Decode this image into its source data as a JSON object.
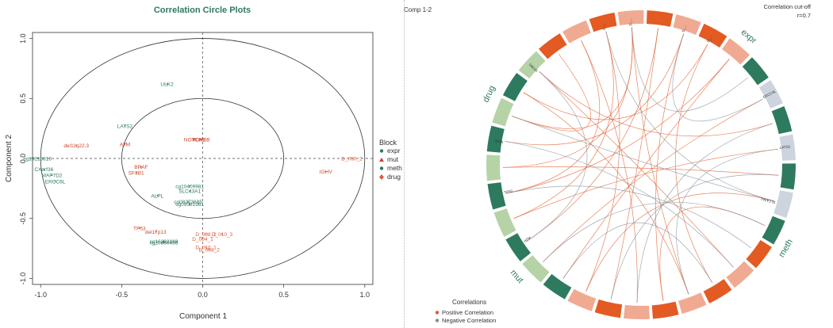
{
  "left_panel": {
    "title": "Correlation Circle Plots",
    "xlabel": "Component  1",
    "ylabel": "Component  2",
    "legend_title": "Block",
    "legend": [
      {
        "label": "expr",
        "color": "#2e7a5e"
      },
      {
        "label": "mut",
        "color": "#c8452a"
      },
      {
        "label": "meth",
        "color": "#2e7a5e"
      },
      {
        "label": "drug",
        "color": "#e05a38"
      }
    ]
  },
  "right_panel": {
    "comp_label": "Comp 1-2",
    "cutoff_line1": "Correlation cut-off",
    "cutoff_line2": "r=0.7",
    "corr_title": "Correlations",
    "corr_legend": [
      {
        "label": "Positive Correlation",
        "color": "#e05a28"
      },
      {
        "label": "Negative Correlation",
        "color": "#7f8f99"
      }
    ],
    "block_labels": [
      {
        "text": "drug",
        "angle": -65
      },
      {
        "text": "expr",
        "angle": 40
      },
      {
        "text": "meth",
        "angle": 120
      },
      {
        "text": "mut",
        "angle": 228
      }
    ]
  },
  "chart_data": [
    {
      "type": "scatter",
      "title": "Correlation Circle Plots",
      "xlabel": "Component  1",
      "ylabel": "Component  2",
      "xlim": [
        -1.05,
        1.05
      ],
      "ylim": [
        -1.05,
        1.05
      ],
      "xticks": [
        "-1.0",
        "-0.5",
        "0.0",
        "0.5",
        "1.0"
      ],
      "yticks": [
        "-1.0",
        "-0.5",
        "0.0",
        "0.5",
        "1.0"
      ],
      "circles": [
        0.5,
        1.0
      ],
      "points": [
        {
          "label": "ULK2",
          "x": -0.22,
          "y": 0.62,
          "block": "expr"
        },
        {
          "label": "LATS2",
          "x": -0.48,
          "y": 0.27,
          "block": "expr"
        },
        {
          "label": "NOTCH1",
          "x": -0.05,
          "y": 0.16,
          "block": "mut"
        },
        {
          "label": "KDM6B",
          "x": -0.01,
          "y": 0.16,
          "block": "mut"
        },
        {
          "label": "ATM",
          "x": -0.48,
          "y": 0.12,
          "block": "mut"
        },
        {
          "label": "del11q22.3",
          "x": -0.78,
          "y": 0.11,
          "block": "mut"
        },
        {
          "label": "cg19219816",
          "x": -1.02,
          "y": 0.0,
          "block": "meth"
        },
        {
          "label": "D_050_2",
          "x": 0.92,
          "y": 0.0,
          "block": "drug"
        },
        {
          "label": "CXorf36",
          "x": -0.98,
          "y": -0.09,
          "block": "expr"
        },
        {
          "label": "MAP7D2",
          "x": -0.93,
          "y": -0.14,
          "block": "expr"
        },
        {
          "label": "ERCC6L",
          "x": -0.91,
          "y": -0.19,
          "block": "expr"
        },
        {
          "label": "BRAF",
          "x": -0.38,
          "y": -0.07,
          "block": "mut"
        },
        {
          "label": "SF3B1",
          "x": -0.41,
          "y": -0.12,
          "block": "mut"
        },
        {
          "label": "IGHV",
          "x": 0.76,
          "y": -0.11,
          "block": "mut"
        },
        {
          "label": "cg10409981",
          "x": -0.08,
          "y": -0.23,
          "block": "meth"
        },
        {
          "label": "SLC43A1",
          "x": -0.08,
          "y": -0.27,
          "block": "expr"
        },
        {
          "label": "ALPL",
          "x": -0.28,
          "y": -0.31,
          "block": "expr"
        },
        {
          "label": "cg08273695",
          "x": -0.09,
          "y": -0.36,
          "block": "meth"
        },
        {
          "label": "cg09581961",
          "x": -0.08,
          "y": -0.38,
          "block": "meth"
        },
        {
          "label": "TP53",
          "x": -0.39,
          "y": -0.58,
          "block": "mut"
        },
        {
          "label": "del17p13",
          "x": -0.29,
          "y": -0.61,
          "block": "mut"
        },
        {
          "label": "D_008_2",
          "x": 0.02,
          "y": -0.63,
          "block": "drug"
        },
        {
          "label": "D_010_3",
          "x": 0.12,
          "y": -0.63,
          "block": "drug"
        },
        {
          "label": "D_004_1",
          "x": 0.0,
          "y": -0.67,
          "block": "drug"
        },
        {
          "label": "cg20886466",
          "x": -0.24,
          "y": -0.7,
          "block": "meth"
        },
        {
          "label": "cg16232888",
          "x": -0.24,
          "y": -0.69,
          "block": "meth"
        },
        {
          "label": "D_010_1",
          "x": 0.02,
          "y": -0.74,
          "block": "drug"
        },
        {
          "label": "D_003_2",
          "x": 0.04,
          "y": -0.76,
          "block": "drug"
        }
      ]
    },
    {
      "type": "table",
      "title": "Comp 1-2",
      "blocks": [
        {
          "name": "drug",
          "color_dark": "#e35a22",
          "color_light": "#f1aa92"
        },
        {
          "name": "expr",
          "color_dark": "#2e7a5e",
          "color_light": "#cdd4dd"
        },
        {
          "name": "meth",
          "color_dark": "#e35a22",
          "color_light": "#f1aa92"
        },
        {
          "name": "mut",
          "color_dark": "#2e7a5e",
          "color_light": "#b5d3a7"
        }
      ],
      "segments": [
        {
          "block": "drug",
          "label": "",
          "shade": "dark"
        },
        {
          "block": "drug",
          "label": "",
          "shade": "light"
        },
        {
          "block": "drug",
          "label": "D_...",
          "shade": "dark"
        },
        {
          "block": "drug",
          "label": "D_...",
          "shade": "light"
        },
        {
          "block": "drug",
          "label": "",
          "shade": "dark"
        },
        {
          "block": "drug",
          "label": "D_...",
          "shade": "light"
        },
        {
          "block": "drug",
          "label": "D_...",
          "shade": "dark"
        },
        {
          "block": "drug",
          "label": "",
          "shade": "light"
        },
        {
          "block": "expr",
          "label": "",
          "shade": "dark"
        },
        {
          "block": "expr",
          "label": "ERCC6L",
          "shade": "light"
        },
        {
          "block": "expr",
          "label": "",
          "shade": "dark"
        },
        {
          "block": "expr",
          "label": "LATS2",
          "shade": "light"
        },
        {
          "block": "expr",
          "label": "",
          "shade": "dark"
        },
        {
          "block": "expr",
          "label": "SLC43A1",
          "shade": "light"
        },
        {
          "block": "expr",
          "label": "",
          "shade": "dark"
        },
        {
          "block": "meth",
          "label": "",
          "shade": "dark"
        },
        {
          "block": "meth",
          "label": "",
          "shade": "light"
        },
        {
          "block": "meth",
          "label": "",
          "shade": "dark"
        },
        {
          "block": "meth",
          "label": "",
          "shade": "light"
        },
        {
          "block": "meth",
          "label": "",
          "shade": "dark"
        },
        {
          "block": "meth",
          "label": "",
          "shade": "light"
        },
        {
          "block": "meth",
          "label": "",
          "shade": "dark"
        },
        {
          "block": "meth",
          "label": "",
          "shade": "light"
        },
        {
          "block": "mut",
          "label": "",
          "shade": "dark"
        },
        {
          "block": "mut",
          "label": "",
          "shade": "light"
        },
        {
          "block": "mut",
          "label": "ATM",
          "shade": "dark"
        },
        {
          "block": "mut",
          "label": "",
          "shade": "light"
        },
        {
          "block": "mut",
          "label": "TP53",
          "shade": "dark"
        },
        {
          "block": "mut",
          "label": "",
          "shade": "light"
        },
        {
          "block": "mut",
          "label": "IGHV",
          "shade": "dark"
        },
        {
          "block": "mut",
          "label": "",
          "shade": "light"
        },
        {
          "block": "mut",
          "label": "",
          "shade": "dark"
        },
        {
          "block": "mut",
          "label": "SF3B1",
          "shade": "light"
        }
      ],
      "links": [
        {
          "from": 1,
          "to": 20,
          "sign": "positive"
        },
        {
          "from": 1,
          "to": 27,
          "sign": "positive"
        },
        {
          "from": 2,
          "to": 22,
          "sign": "positive"
        },
        {
          "from": 2,
          "to": 26,
          "sign": "positive"
        },
        {
          "from": 3,
          "to": 18,
          "sign": "positive"
        },
        {
          "from": 3,
          "to": 28,
          "sign": "positive"
        },
        {
          "from": 3,
          "to": 30,
          "sign": "positive"
        },
        {
          "from": 4,
          "to": 21,
          "sign": "positive"
        },
        {
          "from": 4,
          "to": 25,
          "sign": "positive"
        },
        {
          "from": 5,
          "to": 19,
          "sign": "positive"
        },
        {
          "from": 5,
          "to": 29,
          "sign": "positive"
        },
        {
          "from": 6,
          "to": 17,
          "sign": "positive"
        },
        {
          "from": 6,
          "to": 31,
          "sign": "positive"
        },
        {
          "from": 7,
          "to": 23,
          "sign": "positive"
        },
        {
          "from": 7,
          "to": 27,
          "sign": "positive"
        },
        {
          "from": 0,
          "to": 30,
          "sign": "positive"
        },
        {
          "from": 9,
          "to": 24,
          "sign": "positive"
        },
        {
          "from": 10,
          "to": 32,
          "sign": "positive"
        },
        {
          "from": 11,
          "to": 26,
          "sign": "positive"
        },
        {
          "from": 12,
          "to": 28,
          "sign": "positive"
        },
        {
          "from": 13,
          "to": 22,
          "sign": "positive"
        },
        {
          "from": 14,
          "to": 19,
          "sign": "positive"
        },
        {
          "from": 16,
          "to": 32,
          "sign": "positive"
        },
        {
          "from": 18,
          "to": 31,
          "sign": "positive"
        },
        {
          "from": 8,
          "to": 3,
          "sign": "negative"
        },
        {
          "from": 9,
          "to": 5,
          "sign": "negative"
        },
        {
          "from": 10,
          "to": 20,
          "sign": "negative"
        },
        {
          "from": 11,
          "to": 18,
          "sign": "negative"
        },
        {
          "from": 12,
          "to": 21,
          "sign": "negative"
        },
        {
          "from": 13,
          "to": 30,
          "sign": "negative"
        },
        {
          "from": 14,
          "to": 24,
          "sign": "negative"
        },
        {
          "from": 15,
          "to": 27,
          "sign": "negative"
        },
        {
          "from": 16,
          "to": 29,
          "sign": "negative"
        },
        {
          "from": 17,
          "to": 23,
          "sign": "negative"
        },
        {
          "from": 25,
          "to": 32,
          "sign": "negative"
        },
        {
          "from": 2,
          "to": 13,
          "sign": "negative"
        }
      ]
    }
  ]
}
